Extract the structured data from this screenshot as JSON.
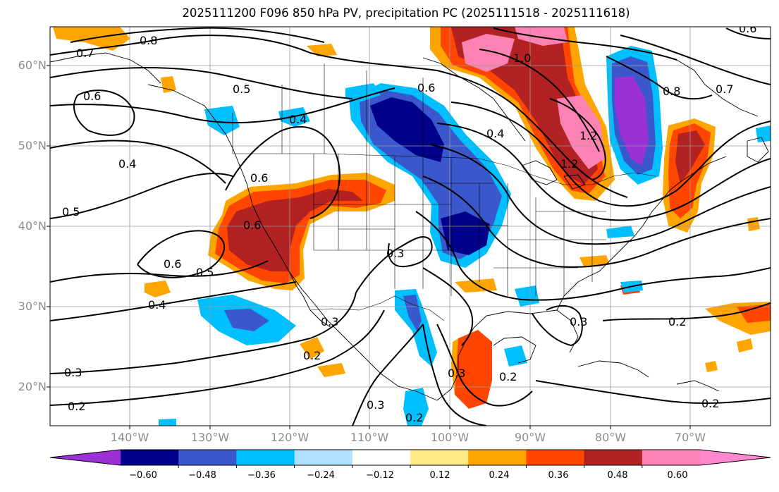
{
  "title": "2025111200 F096 850 hPa PV, precipitation PC (2025111518 - 2025111618)",
  "lat_labels": [
    "60°N",
    "50°N",
    "40°N",
    "30°N",
    "20°N"
  ],
  "lon_labels": [
    "140°W",
    "130°W",
    "120°W",
    "110°W",
    "100°W",
    "90°W",
    "80°W",
    "70°W"
  ],
  "colorbar": {
    "colors": [
      "#9b30d6",
      "#00008b",
      "#3a58cc",
      "#00bfff",
      "#b0e0ff",
      "#ffffff",
      "#ffeb85",
      "#ffa500",
      "#ff4500",
      "#b22222",
      "#ff82b4",
      "#ff88d0"
    ],
    "ticks": [
      "−0.60",
      "−0.48",
      "−0.36",
      "−0.24",
      "−0.12",
      "0.12",
      "0.24",
      "0.36",
      "0.48",
      "0.60"
    ]
  },
  "contour_labels": [
    "0.7",
    "0.8",
    "0.6",
    "0.5",
    "0.4",
    "0.4",
    "0.6",
    "0.5",
    "0.6",
    "0.5",
    "0.4",
    "0.3",
    "0.2",
    "0.3",
    "0.2",
    "0.6",
    "0.3",
    "0.2",
    "1.0",
    "1.2",
    "0.8",
    "0.7",
    "0.6",
    "0.3",
    "0.2",
    "0.2",
    "0.3",
    "0.2",
    "1.2",
    "0.6",
    "0.3",
    "0.4"
  ]
}
